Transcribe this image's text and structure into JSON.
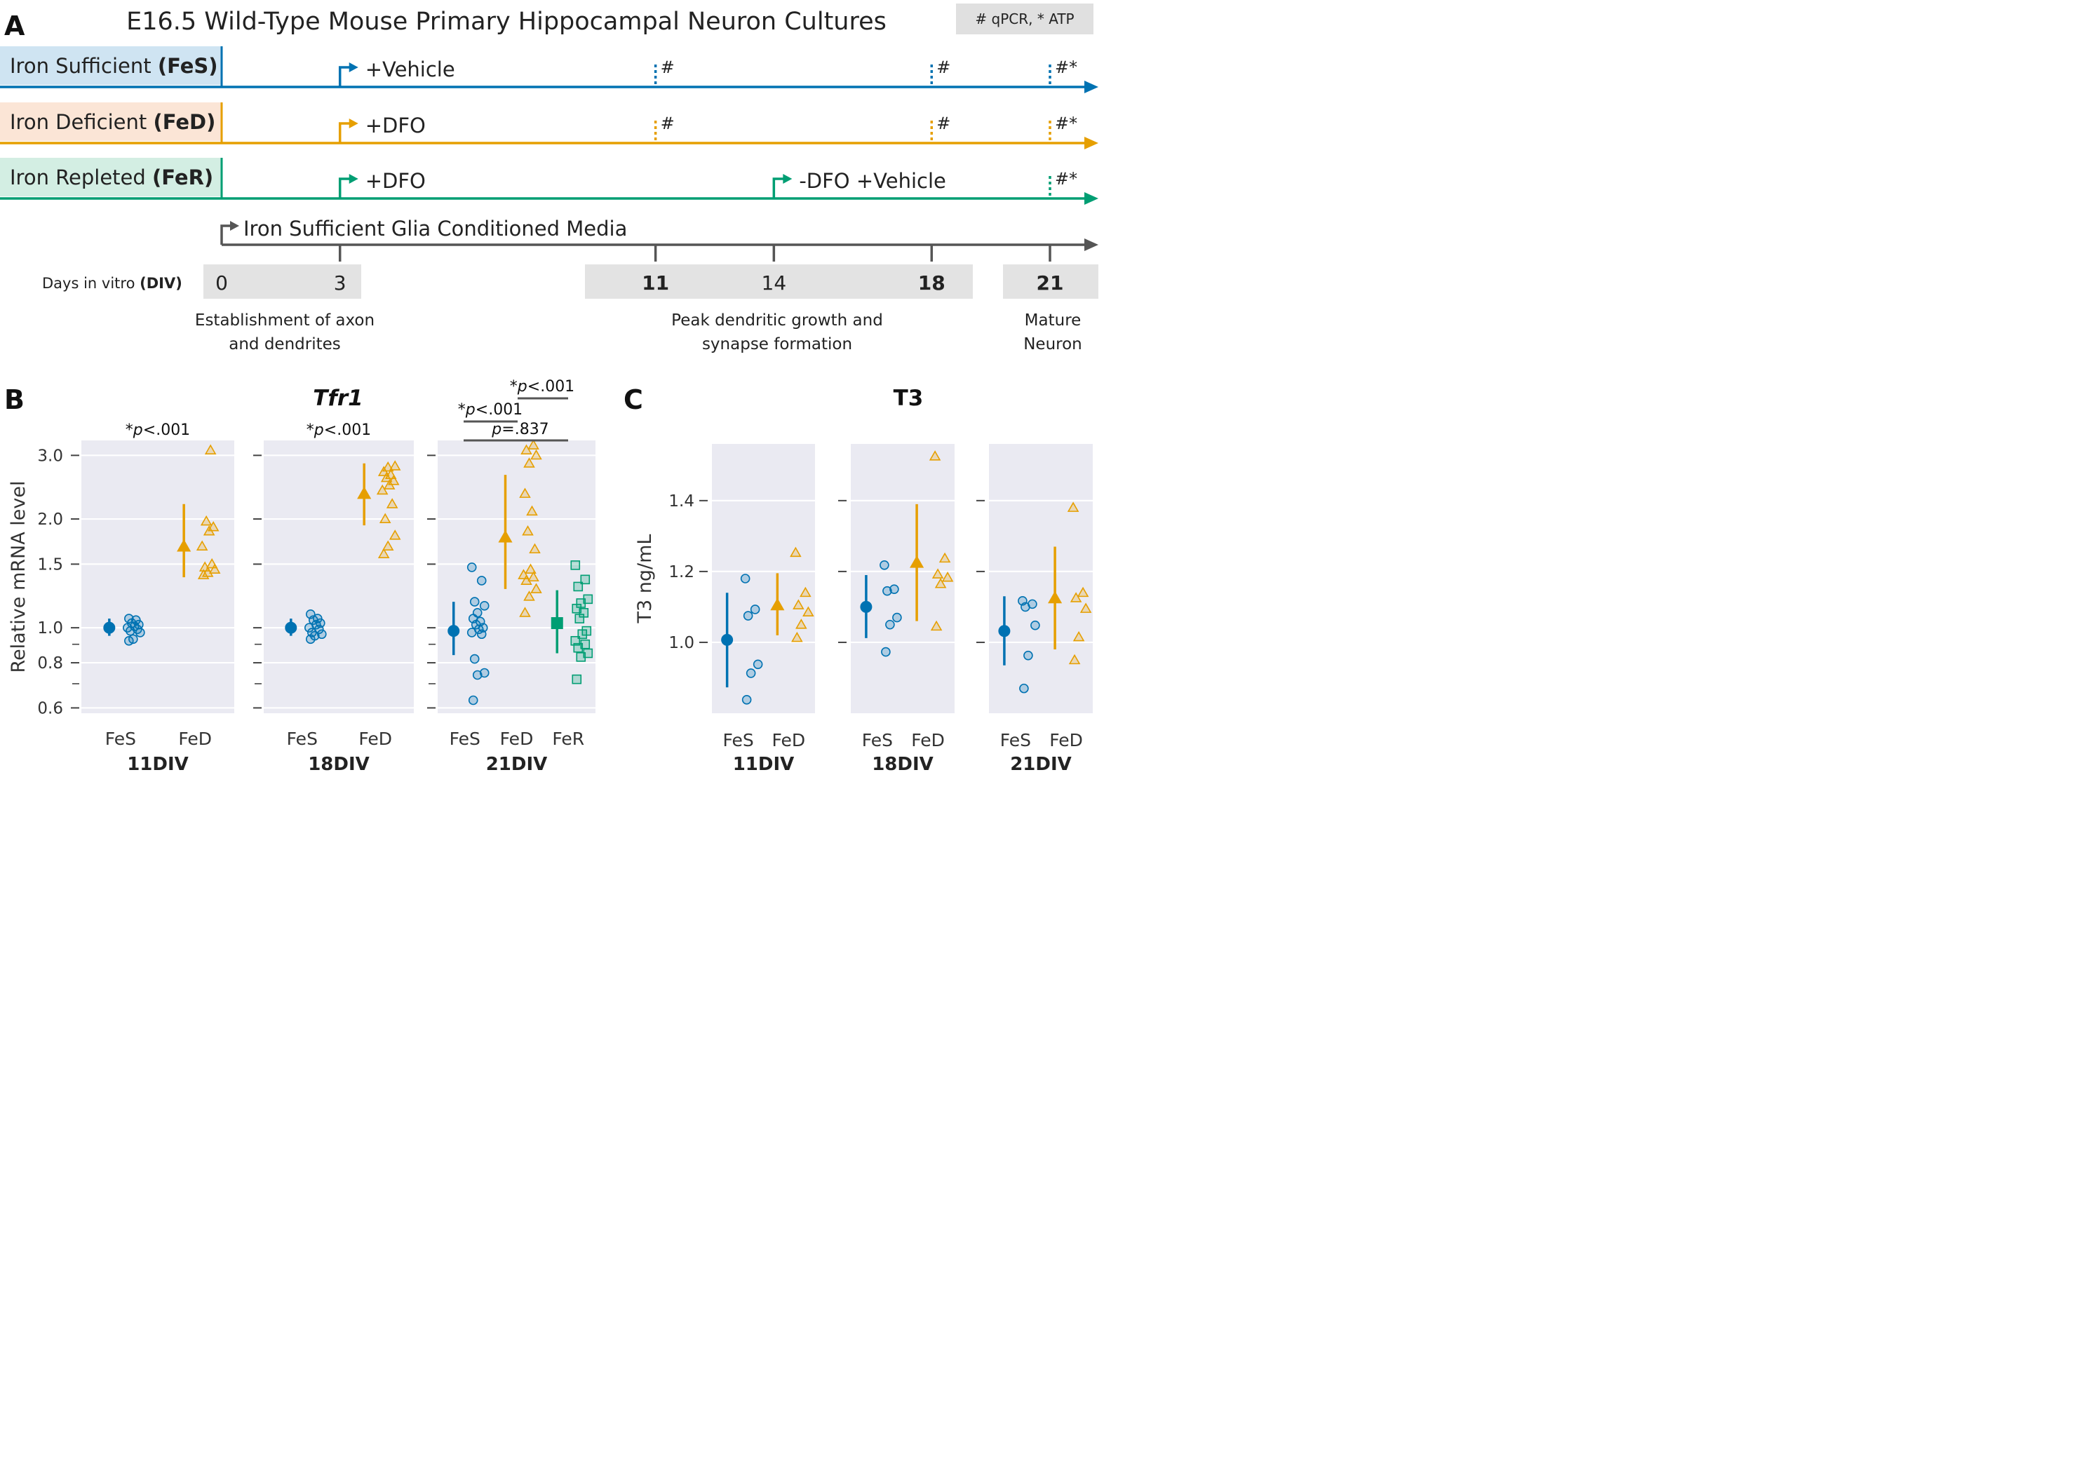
{
  "panelA": {
    "label": "A",
    "title": "E16.5 Wild-Type Mouse Primary Hippocampal Neuron Cultures",
    "legend": "# qPCR, * ATP",
    "rows": [
      {
        "name": "Iron Sufficient ",
        "abbr": "(FeS)",
        "color": "#0072b2",
        "bg": "#cfe4f2",
        "events": [
          {
            "day": 3,
            "text": "+Vehicle"
          }
        ],
        "marks": [
          "#",
          "#",
          "#*"
        ],
        "markDays": [
          11,
          18,
          21
        ]
      },
      {
        "name": "Iron Deficient ",
        "abbr": "(FeD)",
        "color": "#e69f00",
        "bg": "#fbe5d6",
        "events": [
          {
            "day": 3,
            "text": "+DFO"
          }
        ],
        "marks": [
          "#",
          "#",
          "#*"
        ],
        "markDays": [
          11,
          18,
          21
        ]
      },
      {
        "name": "Iron Repleted ",
        "abbr": "(FeR)",
        "color": "#009e73",
        "bg": "#d3eee3",
        "events": [
          {
            "day": 3,
            "text": "+DFO"
          },
          {
            "day": 14,
            "text": "-DFO +Vehicle"
          }
        ],
        "marks": [
          "#*"
        ],
        "markDays": [
          21
        ]
      }
    ],
    "glia_text": "Iron Sufficient Glia Conditioned Media",
    "days_label": "Days in vitro ",
    "days_abbr": "(DIV)",
    "days": [
      {
        "day": 0,
        "label": "0",
        "bold": false
      },
      {
        "day": 3,
        "label": "3",
        "bold": false
      },
      {
        "day": 11,
        "label": "11",
        "bold": true
      },
      {
        "day": 14,
        "label": "14",
        "bold": false
      },
      {
        "day": 18,
        "label": "18",
        "bold": true
      },
      {
        "day": 21,
        "label": "21",
        "bold": true
      }
    ],
    "stages": [
      {
        "lines": [
          "Establishment of axon",
          "and dendrites"
        ]
      },
      {
        "lines": [
          "Peak dendritic growth and",
          "synapse formation"
        ]
      },
      {
        "lines": [
          "Mature",
          "Neuron"
        ]
      }
    ]
  },
  "colors": {
    "FeS": "#0072b2",
    "FeD": "#e69f00",
    "FeR": "#009e73",
    "panel_bg": "#eaeaf2"
  },
  "chart_data": [
    {
      "id": "B",
      "label": "B",
      "type": "scatter",
      "title": "Tfr1",
      "ylabel": "Relative mRNA level",
      "yscale": "log",
      "ylim": [
        0.58,
        3.3
      ],
      "yticks": [
        0.6,
        0.8,
        1.0,
        1.5,
        2.0,
        3.0
      ],
      "ytick_labels": [
        "0.6",
        "0.8",
        "1.0",
        "1.5",
        "2.0",
        "3.0"
      ],
      "minor_ticks": [
        0.7,
        0.9
      ],
      "subpanels": [
        {
          "name": "11DIV",
          "groups": [
            {
              "name": "FeS",
              "marker": "circle",
              "mean": 1.0,
              "ci": [
                0.95,
                1.06
              ],
              "points": [
                0.92,
                0.93,
                0.97,
                0.98,
                0.99,
                1.0,
                1.01,
                1.02,
                1.03,
                1.05,
                1.06
              ]
            },
            {
              "name": "FeD",
              "marker": "triangle",
              "mean": 1.68,
              "ci": [
                1.38,
                2.2
              ],
              "points": [
                1.4,
                1.42,
                1.45,
                1.47,
                1.5,
                1.68,
                1.85,
                1.9,
                1.97,
                3.1
              ]
            }
          ],
          "comparisons": [
            {
              "text": "p<.001",
              "star": true
            }
          ]
        },
        {
          "name": "18DIV",
          "groups": [
            {
              "name": "FeS",
              "marker": "circle",
              "mean": 1.0,
              "ci": [
                0.95,
                1.06
              ],
              "points": [
                0.93,
                0.95,
                0.96,
                0.97,
                0.99,
                1.0,
                1.02,
                1.03,
                1.05,
                1.06,
                1.09
              ]
            },
            {
              "name": "FeD",
              "marker": "triangle",
              "mean": 2.35,
              "ci": [
                1.92,
                2.85
              ],
              "points": [
                1.6,
                1.68,
                1.8,
                2.0,
                2.2,
                2.4,
                2.48,
                2.55,
                2.6,
                2.65,
                2.7,
                2.78,
                2.8
              ]
            }
          ],
          "comparisons": [
            {
              "text": "p<.001",
              "star": true
            }
          ]
        },
        {
          "name": "21DIV",
          "groups": [
            {
              "name": "FeS",
              "marker": "circle",
              "mean": 0.98,
              "ci": [
                0.84,
                1.18
              ],
              "points": [
                0.63,
                0.74,
                0.75,
                0.82,
                0.96,
                0.97,
                0.99,
                1.0,
                1.02,
                1.04,
                1.06,
                1.1,
                1.15,
                1.18,
                1.35,
                1.47
              ]
            },
            {
              "name": "FeD",
              "marker": "triangle",
              "mean": 1.78,
              "ci": [
                1.28,
                2.65
              ],
              "points": [
                1.1,
                1.22,
                1.28,
                1.35,
                1.38,
                1.4,
                1.45,
                1.65,
                1.85,
                2.1,
                2.35,
                2.85,
                3.0,
                3.1,
                3.2
              ]
            },
            {
              "name": "FeR",
              "marker": "square",
              "mean": 1.03,
              "ci": [
                0.85,
                1.27
              ],
              "points": [
                0.72,
                0.83,
                0.85,
                0.88,
                0.9,
                0.92,
                0.96,
                0.98,
                1.06,
                1.1,
                1.13,
                1.17,
                1.2,
                1.3,
                1.36,
                1.49
              ]
            }
          ],
          "comparisons": [
            {
              "text": "p<.001",
              "star": true
            },
            {
              "text": "p<.001",
              "star": true
            },
            {
              "text": "p=.837",
              "star": false
            }
          ]
        }
      ]
    },
    {
      "id": "C",
      "label": "C",
      "type": "scatter",
      "title": "T3",
      "ylabel": "T3 ng/mL",
      "yscale": "linear",
      "ylim": [
        0.8,
        1.56
      ],
      "yticks": [
        1.0,
        1.2,
        1.4
      ],
      "ytick_labels": [
        "1.0",
        "1.2",
        "1.4"
      ],
      "minor_ticks": [],
      "subpanels": [
        {
          "name": "11DIV",
          "groups": [
            {
              "name": "FeS",
              "marker": "circle",
              "mean": 1.007,
              "ci": [
                0.873,
                1.14
              ],
              "points": [
                0.838,
                0.913,
                0.938,
                1.075,
                1.093,
                1.18
              ]
            },
            {
              "name": "FeD",
              "marker": "triangle",
              "mean": 1.105,
              "ci": [
                1.02,
                1.195
              ],
              "points": [
                1.013,
                1.05,
                1.085,
                1.105,
                1.14,
                1.253
              ]
            }
          ],
          "comparisons": []
        },
        {
          "name": "18DIV",
          "groups": [
            {
              "name": "FeS",
              "marker": "circle",
              "mean": 1.1,
              "ci": [
                1.012,
                1.19
              ],
              "points": [
                0.973,
                1.05,
                1.07,
                1.145,
                1.15,
                1.218
              ]
            },
            {
              "name": "FeD",
              "marker": "triangle",
              "mean": 1.225,
              "ci": [
                1.06,
                1.39
              ],
              "points": [
                1.045,
                1.165,
                1.183,
                1.192,
                1.237,
                1.525
              ]
            }
          ],
          "comparisons": []
        },
        {
          "name": "21DIV",
          "groups": [
            {
              "name": "FeS",
              "marker": "circle",
              "mean": 1.032,
              "ci": [
                0.935,
                1.13
              ],
              "points": [
                0.87,
                0.963,
                1.048,
                1.1,
                1.108,
                1.117
              ]
            },
            {
              "name": "FeD",
              "marker": "triangle",
              "mean": 1.125,
              "ci": [
                0.98,
                1.27
              ],
              "points": [
                0.95,
                1.015,
                1.095,
                1.125,
                1.14,
                1.38
              ]
            }
          ],
          "comparisons": []
        }
      ]
    }
  ]
}
